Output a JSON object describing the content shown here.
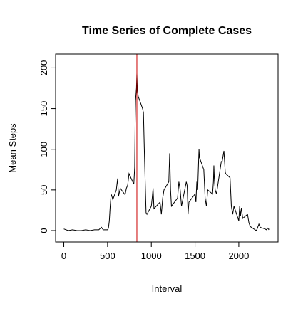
{
  "chart_data": {
    "type": "line",
    "title": "Time Series of Complete Cases",
    "xlabel": "Interval",
    "ylabel": "Mean Steps",
    "color": "#000000",
    "vline": 835,
    "vline_color": "#cc0000",
    "x": [
      0,
      50,
      100,
      150,
      200,
      250,
      300,
      350,
      400,
      430,
      450,
      500,
      510,
      520,
      530,
      540,
      545,
      560,
      600,
      615,
      625,
      645,
      700,
      715,
      730,
      745,
      800,
      810,
      815,
      820,
      830,
      835,
      840,
      845,
      850,
      900,
      910,
      920,
      930,
      940,
      950,
      1000,
      1010,
      1020,
      1030,
      1100,
      1115,
      1130,
      1145,
      1200,
      1210,
      1220,
      1230,
      1300,
      1315,
      1330,
      1345,
      1400,
      1410,
      1420,
      1430,
      1500,
      1510,
      1520,
      1530,
      1545,
      1550,
      1600,
      1615,
      1630,
      1645,
      1700,
      1710,
      1715,
      1720,
      1730,
      1745,
      1800,
      1810,
      1830,
      1845,
      1850,
      1900,
      1915,
      1930,
      1945,
      2000,
      2010,
      2020,
      2030,
      2045,
      2100,
      2115,
      2130,
      2145,
      2200,
      2210,
      2230,
      2245,
      2300,
      2315,
      2330,
      2345,
      2355
    ],
    "values": [
      2,
      0,
      1,
      0,
      0,
      1,
      0,
      1,
      1,
      4,
      1,
      1,
      3,
      12,
      30,
      44,
      44,
      38,
      50,
      64,
      42,
      52,
      44,
      52,
      56,
      70,
      57,
      78,
      132,
      160,
      175,
      193,
      175,
      170,
      165,
      150,
      145,
      100,
      60,
      22,
      20,
      30,
      40,
      52,
      27,
      35,
      20,
      40,
      50,
      60,
      95,
      50,
      30,
      40,
      60,
      50,
      30,
      60,
      55,
      20,
      35,
      45,
      35,
      60,
      50,
      100,
      90,
      75,
      40,
      30,
      50,
      45,
      60,
      80,
      65,
      50,
      45,
      85,
      85,
      98,
      72,
      70,
      65,
      30,
      20,
      30,
      12,
      30,
      18,
      28,
      15,
      20,
      10,
      5,
      4,
      0,
      2,
      8,
      4,
      2,
      1,
      3,
      1,
      2
    ],
    "xlim": [
      -94,
      2449
    ],
    "ylim": [
      -14,
      217
    ],
    "xticks": [
      0,
      500,
      1000,
      1500,
      2000
    ],
    "yticks": [
      0,
      50,
      100,
      150,
      200
    ]
  }
}
